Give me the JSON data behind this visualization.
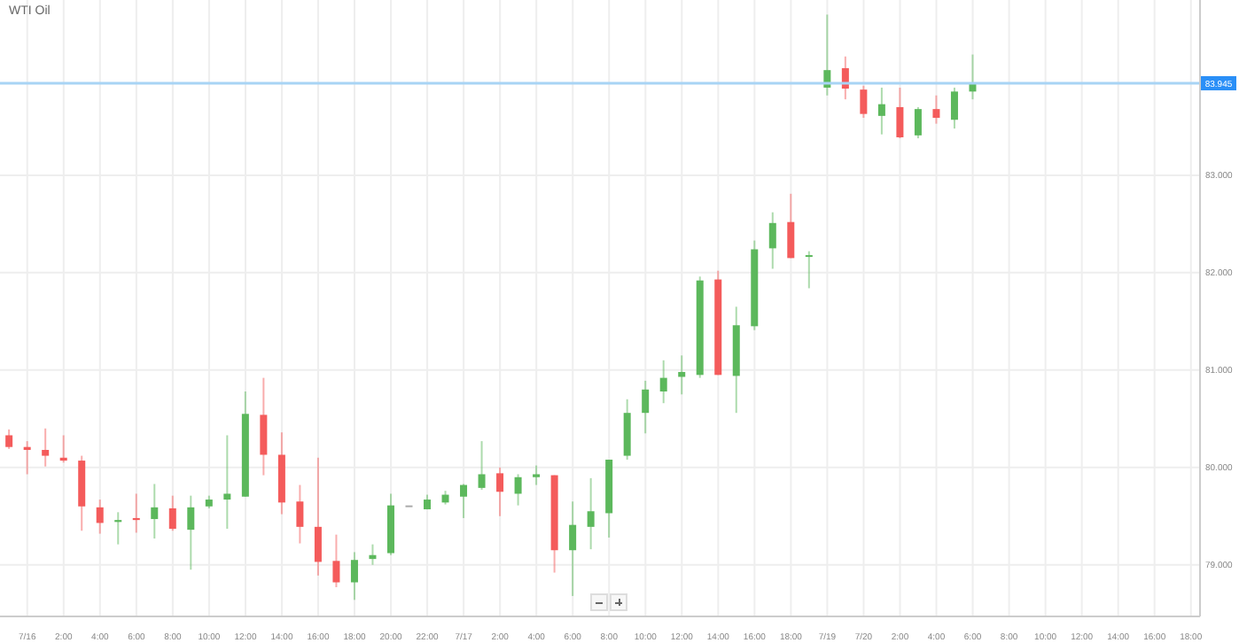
{
  "chart_data": {
    "type": "candlestick",
    "title": "WTI Oil",
    "categories": [
      null,
      "7/16",
      null,
      "2:00",
      null,
      "4:00",
      null,
      "6:00",
      null,
      "8:00",
      null,
      "10:00",
      null,
      "12:00",
      null,
      "14:00",
      null,
      "16:00",
      null,
      "18:00",
      null,
      "20:00",
      null,
      "22:00",
      null,
      "7/17",
      null,
      "2:00",
      null,
      "4:00",
      null,
      "6:00",
      null,
      "8:00",
      null,
      "10:00",
      null,
      "12:00",
      null,
      "14:00",
      null,
      "16:00",
      null,
      "18:00",
      null,
      "7/19",
      null,
      "7/20",
      null,
      "2:00",
      null,
      "4:00",
      null,
      "6:00",
      null,
      "8:00",
      null,
      "10:00",
      null,
      "12:00",
      null,
      "14:00",
      null,
      "16:00",
      null,
      "18:00"
    ],
    "ohlc": [
      [
        80.33,
        80.39,
        80.19,
        80.21
      ],
      [
        80.21,
        80.27,
        79.93,
        80.18
      ],
      [
        80.18,
        80.4,
        80.01,
        80.12
      ],
      [
        80.1,
        80.33,
        80.05,
        80.07
      ],
      [
        80.07,
        80.12,
        79.35,
        79.6
      ],
      [
        79.59,
        79.67,
        79.32,
        79.43
      ],
      [
        79.44,
        79.54,
        79.21,
        79.46
      ],
      [
        79.48,
        79.73,
        79.33,
        79.46
      ],
      [
        79.47,
        79.83,
        79.27,
        79.59
      ],
      [
        79.58,
        79.71,
        79.35,
        79.37
      ],
      [
        79.36,
        79.71,
        78.95,
        79.59
      ],
      [
        79.6,
        79.71,
        79.58,
        79.67
      ],
      [
        79.67,
        80.33,
        79.37,
        79.73
      ],
      [
        79.7,
        80.78,
        79.7,
        80.55
      ],
      [
        80.54,
        80.92,
        79.92,
        80.13
      ],
      [
        80.13,
        80.36,
        79.52,
        79.64
      ],
      [
        79.65,
        79.82,
        79.22,
        79.39
      ],
      [
        79.39,
        80.1,
        78.89,
        79.03
      ],
      [
        79.04,
        79.31,
        78.77,
        78.82
      ],
      [
        78.82,
        79.13,
        78.64,
        79.05
      ],
      [
        79.06,
        79.21,
        79.0,
        79.1
      ],
      [
        79.12,
        79.73,
        79.1,
        79.61
      ],
      [
        79.61,
        79.61,
        79.61,
        79.61
      ],
      [
        79.57,
        79.72,
        79.57,
        79.67
      ],
      [
        79.64,
        79.76,
        79.62,
        79.72
      ],
      [
        79.7,
        79.83,
        79.48,
        79.82
      ],
      [
        79.79,
        80.27,
        79.77,
        79.93
      ],
      [
        79.94,
        80.0,
        79.5,
        79.75
      ],
      [
        79.73,
        79.93,
        79.61,
        79.9
      ],
      [
        79.9,
        80.02,
        79.82,
        79.93
      ],
      [
        79.92,
        79.92,
        78.92,
        79.15
      ],
      [
        79.15,
        79.65,
        78.68,
        79.41
      ],
      [
        79.39,
        79.89,
        79.16,
        79.55
      ],
      [
        79.53,
        80.08,
        79.28,
        80.08
      ],
      [
        80.12,
        80.7,
        80.08,
        80.56
      ],
      [
        80.56,
        80.89,
        80.35,
        80.8
      ],
      [
        80.78,
        81.1,
        80.66,
        80.92
      ],
      [
        80.93,
        81.15,
        80.75,
        80.98
      ],
      [
        80.95,
        81.96,
        80.92,
        81.92
      ],
      [
        81.93,
        82.02,
        80.95,
        80.95
      ],
      [
        80.94,
        81.65,
        80.56,
        81.46
      ],
      [
        81.45,
        82.33,
        81.41,
        82.24
      ],
      [
        82.25,
        82.62,
        82.04,
        82.51
      ],
      [
        82.52,
        82.81,
        82.15,
        82.15
      ],
      [
        82.18,
        82.22,
        81.84,
        82.18
      ],
      [
        83.9,
        84.65,
        83.82,
        84.08
      ],
      [
        84.1,
        84.22,
        83.78,
        83.89
      ],
      [
        83.88,
        83.92,
        83.59,
        83.63
      ],
      [
        83.61,
        83.9,
        83.42,
        83.73
      ],
      [
        83.7,
        83.9,
        83.38,
        83.39
      ],
      [
        83.41,
        83.7,
        83.38,
        83.68
      ],
      [
        83.68,
        83.82,
        83.53,
        83.59
      ],
      [
        83.57,
        83.9,
        83.48,
        83.86
      ],
      [
        83.86,
        84.24,
        83.78,
        83.94
      ],
      null,
      null,
      null,
      null,
      null,
      null,
      null,
      null,
      null,
      null,
      null,
      null
    ],
    "colors": [
      "#f45b5b",
      "#f45b5b",
      "#f45b5b",
      "#f45b5b",
      "#f45b5b",
      "#f45b5b",
      "#5cb85c",
      "#f45b5b",
      "#5cb85c",
      "#f45b5b",
      "#5cb85c",
      "#5cb85c",
      "#5cb85c",
      "#5cb85c",
      "#f45b5b",
      "#f45b5b",
      "#f45b5b",
      "#f45b5b",
      "#f45b5b",
      "#5cb85c",
      "#5cb85c",
      "#5cb85c",
      "#aaaaaa",
      "#5cb85c",
      "#5cb85c",
      "#5cb85c",
      "#5cb85c",
      "#f45b5b",
      "#5cb85c",
      "#5cb85c",
      "#f45b5b",
      "#5cb85c",
      "#5cb85c",
      "#5cb85c",
      "#5cb85c",
      "#5cb85c",
      "#5cb85c",
      "#5cb85c",
      "#5cb85c",
      "#f45b5b",
      "#5cb85c",
      "#5cb85c",
      "#5cb85c",
      "#f45b5b",
      "#5cb85c",
      "#5cb85c",
      "#f45b5b",
      "#f45b5b",
      "#5cb85c",
      "#f45b5b",
      "#5cb85c",
      "#f45b5b",
      "#5cb85c",
      "#5cb85c",
      null,
      null,
      null,
      null,
      null,
      null,
      null,
      null,
      null,
      null,
      null,
      null
    ],
    "ylim": [
      78.47,
      84.8
    ],
    "yticks": [
      {
        "value": 79,
        "label": "79.000"
      },
      {
        "value": 80,
        "label": "80.000"
      },
      {
        "value": 81,
        "label": "81.000"
      },
      {
        "value": 82,
        "label": "82.000"
      },
      {
        "value": 83,
        "label": "83.000"
      }
    ],
    "ref_lines": [
      {
        "axis": "y",
        "value": 83.945,
        "label": "83.945",
        "color": "#a8d4f5"
      }
    ],
    "grid": true
  }
}
